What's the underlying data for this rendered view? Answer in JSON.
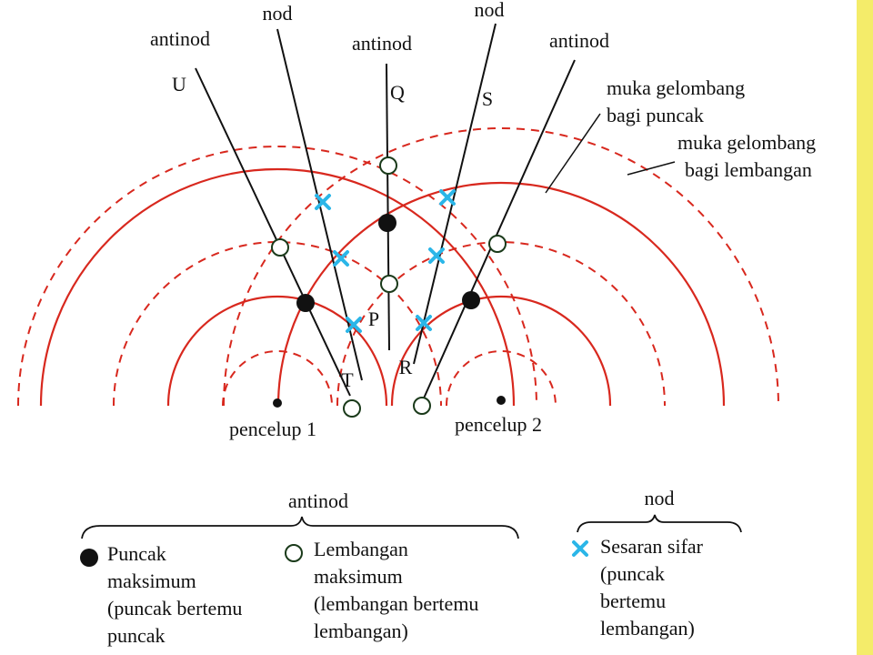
{
  "line_labels": [
    "antinod",
    "nod",
    "antinod",
    "nod",
    "antinod"
  ],
  "point_labels": [
    "U",
    "Q",
    "S",
    "T",
    "P",
    "R"
  ],
  "wavefront_labels": {
    "crest": [
      "muka gelombang",
      "bagi puncak"
    ],
    "trough": [
      "muka gelombang",
      "bagi lembangan"
    ]
  },
  "dippers": [
    "pencelup 1",
    "pencelup 2"
  ],
  "legend": {
    "antinode_group": "antinod",
    "node_group": "nod",
    "items": [
      {
        "lines": [
          "Puncak",
          "maksimum",
          "(puncak bertemu",
          "puncak"
        ]
      },
      {
        "lines": [
          "Lembangan",
          "maksimum",
          "(lembangan bertemu",
          "lembangan)"
        ]
      },
      {
        "lines": [
          "Sesaran sifar",
          "(puncak",
          "bertemu",
          "lembangan)"
        ]
      }
    ]
  }
}
